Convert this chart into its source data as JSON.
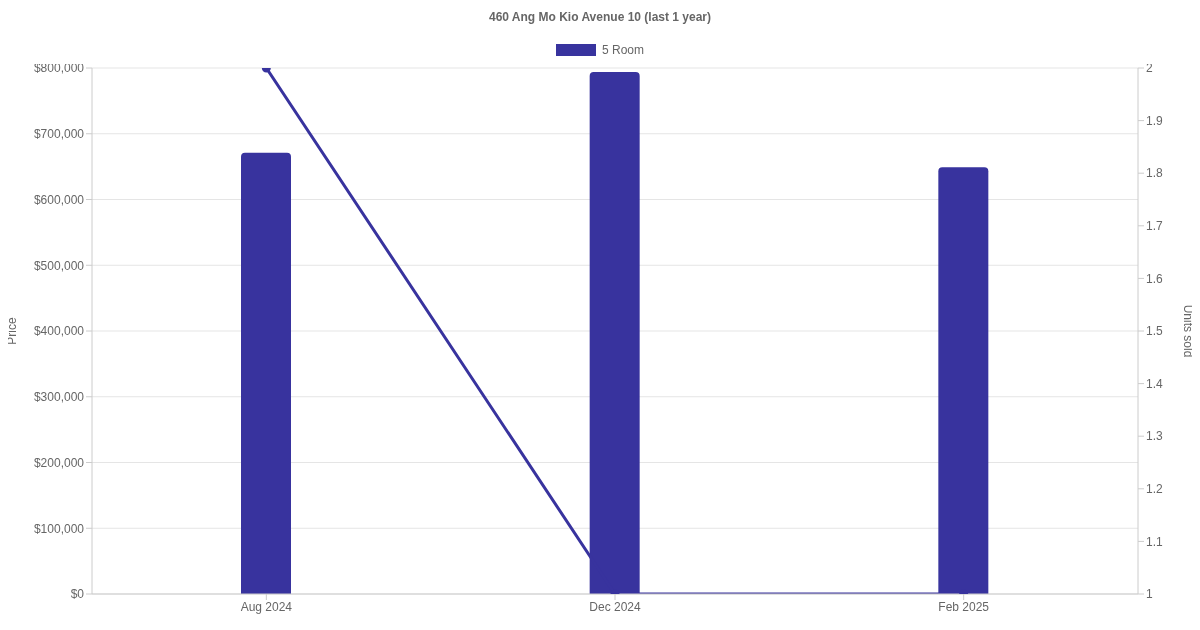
{
  "chart_data": {
    "type": "bar",
    "title": "460 Ang Mo Kio Avenue 10 (last 1 year)",
    "ylabel": "Price",
    "y2label": "Units sold",
    "categories": [
      "Aug 2024",
      "Dec 2024",
      "Feb 2025"
    ],
    "series": [
      {
        "name": "5 Room",
        "color": "#38339e",
        "values": [
          671000,
          794000,
          649000
        ]
      },
      {
        "type": "line",
        "axis": "y2",
        "color": "#38339e",
        "values": [
          2,
          1,
          1
        ]
      }
    ],
    "ylim": [
      0,
      800000
    ],
    "yticks": [
      {
        "value": 0,
        "label": "$0"
      },
      {
        "value": 100000,
        "label": "$100,000"
      },
      {
        "value": 200000,
        "label": "$200,000"
      },
      {
        "value": 300000,
        "label": "$300,000"
      },
      {
        "value": 400000,
        "label": "$400,000"
      },
      {
        "value": 500000,
        "label": "$500,000"
      },
      {
        "value": 600000,
        "label": "$600,000"
      },
      {
        "value": 700000,
        "label": "$700,000"
      },
      {
        "value": 800000,
        "label": "$800,000"
      }
    ],
    "y2lim": [
      1,
      2
    ],
    "y2ticks": [
      1,
      1.1,
      1.2,
      1.3,
      1.4,
      1.5,
      1.6,
      1.7,
      1.8,
      1.9,
      2
    ],
    "grid": "y",
    "legend": "top",
    "marker": "circle",
    "line_style": "solid"
  }
}
